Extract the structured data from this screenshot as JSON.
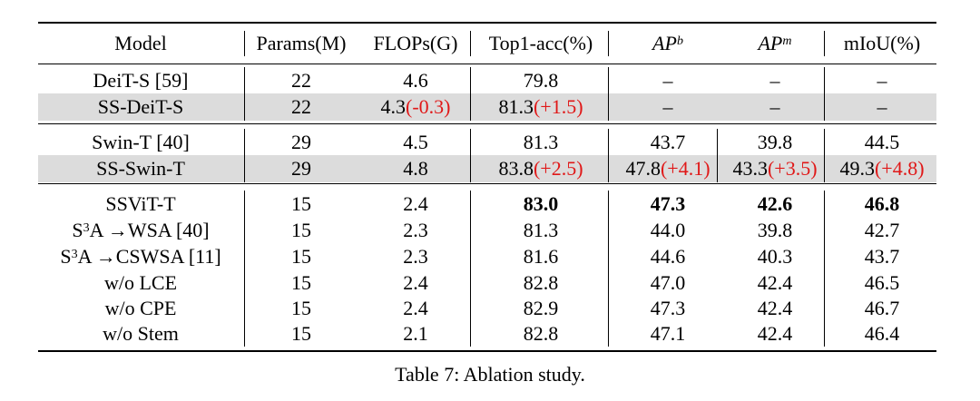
{
  "table": {
    "headers": {
      "model": "Model",
      "params": "Params(M)",
      "flops": "FLOPs(G)",
      "top1": "Top1-acc(%)",
      "ap_b_base": "AP",
      "ap_b_sup": "b",
      "ap_m_base": "AP",
      "ap_m_sup": "m",
      "miou": "mIoU(%)"
    },
    "group1": {
      "r1": {
        "model": "DeiT-S [59]",
        "params": "22",
        "flops": "4.6",
        "top1": "79.8",
        "apb": "–",
        "apm": "–",
        "miou": "–"
      },
      "r2": {
        "model": "SS-DeiT-S",
        "params": "22",
        "flops": "4.3",
        "flops_delta": "(-0.3)",
        "top1": "81.3",
        "top1_delta": "(+1.5)",
        "apb": "–",
        "apm": "–",
        "miou": "–"
      }
    },
    "group2": {
      "r1": {
        "model": "Swin-T [40]",
        "params": "29",
        "flops": "4.5",
        "top1": "81.3",
        "apb": "43.7",
        "apm": "39.8",
        "miou": "44.5"
      },
      "r2": {
        "model": "SS-Swin-T",
        "params": "29",
        "flops": "4.8",
        "top1": "83.8",
        "top1_delta": "(+2.5)",
        "apb": "47.8",
        "apb_delta": "(+4.1)",
        "apm": "43.3",
        "apm_delta": "(+3.5)",
        "miou": "49.3",
        "miou_delta": "(+4.8)"
      }
    },
    "group3": {
      "r1": {
        "model": "SSViT-T",
        "params": "15",
        "flops": "2.4",
        "top1": "83.0",
        "apb": "47.3",
        "apm": "42.6",
        "miou": "46.8"
      },
      "r2": {
        "model_base": "S",
        "model_sup": "3",
        "model_rest": "A →WSA [40]",
        "params": "15",
        "flops": "2.3",
        "top1": "81.3",
        "apb": "44.0",
        "apm": "39.8",
        "miou": "42.7"
      },
      "r3": {
        "model_base": "S",
        "model_sup": "3",
        "model_rest": "A →CSWSA [11]",
        "params": "15",
        "flops": "2.3",
        "top1": "81.6",
        "apb": "44.6",
        "apm": "40.3",
        "miou": "43.7"
      },
      "r4": {
        "model": "w/o LCE",
        "params": "15",
        "flops": "2.4",
        "top1": "82.8",
        "apb": "47.0",
        "apm": "42.4",
        "miou": "46.5"
      },
      "r5": {
        "model": "w/o CPE",
        "params": "15",
        "flops": "2.4",
        "top1": "82.9",
        "apb": "47.3",
        "apm": "42.4",
        "miou": "46.7"
      },
      "r6": {
        "model": "w/o Stem",
        "params": "15",
        "flops": "2.1",
        "top1": "82.8",
        "apb": "47.1",
        "apm": "42.4",
        "miou": "46.4"
      }
    }
  },
  "caption": "Table 7: Ablation study.",
  "colors": {
    "delta": "#e01818",
    "shade": "#dcdcdc"
  }
}
